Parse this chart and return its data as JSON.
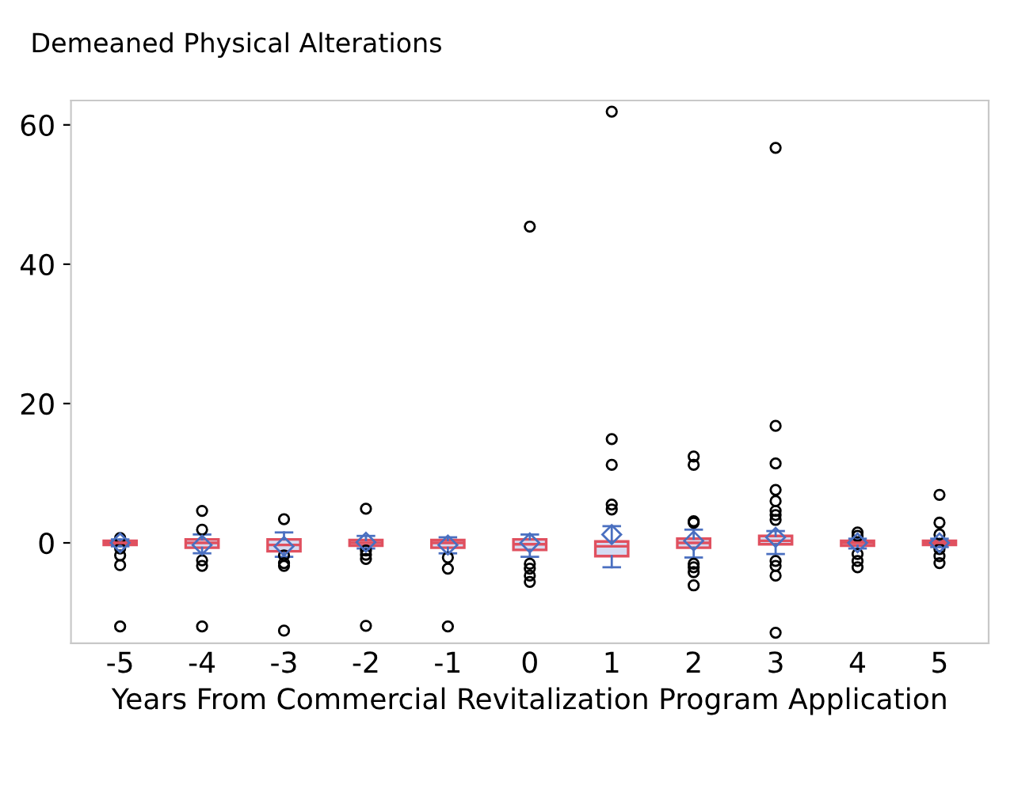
{
  "chart_data": {
    "type": "box",
    "title": "Demeaned Physical Alterations",
    "xlabel": "Years From Commercial Revitalization Program Application",
    "categories": [
      "-5",
      "-4",
      "-3",
      "-2",
      "-1",
      "0",
      "1",
      "2",
      "3",
      "4",
      "5"
    ],
    "ylim": [
      -14.4,
      63.5
    ],
    "yticks": [
      0,
      20,
      40,
      60
    ],
    "grid": false,
    "color": "#e0505f",
    "boxes": [
      {
        "low": -0.5,
        "q1": -0.3,
        "median": 0,
        "q3": 0.3,
        "high": 0.5,
        "mean": 0,
        "outliers": [
          0.7,
          -0.8,
          -1.8,
          -3.2,
          -12.0
        ]
      },
      {
        "low": -1.5,
        "q1": -0.7,
        "median": 0,
        "q3": 0.5,
        "high": 1.2,
        "mean": -0.3,
        "outliers": [
          4.6,
          1.9,
          -2.5,
          -3.3,
          -12.0
        ]
      },
      {
        "low": -2.0,
        "q1": -1.2,
        "median": -0.3,
        "q3": 0.5,
        "high": 1.5,
        "mean": -0.5,
        "outliers": [
          3.4,
          -1.8,
          -2.9,
          -3.3,
          -12.6
        ]
      },
      {
        "low": -0.8,
        "q1": -0.4,
        "median": 0,
        "q3": 0.4,
        "high": 1.0,
        "mean": 0.1,
        "outliers": [
          4.9,
          -1.1,
          -1.7,
          -2.3,
          -11.9
        ]
      },
      {
        "low": -1.5,
        "q1": -0.7,
        "median": 0,
        "q3": 0.4,
        "high": 0.8,
        "mean": -0.3,
        "outliers": [
          -2.1,
          -3.7,
          -12.0
        ]
      },
      {
        "low": -2.0,
        "q1": -1.0,
        "median": -0.2,
        "q3": 0.5,
        "high": 1.2,
        "mean": 0,
        "outliers": [
          45.4,
          -3.0,
          -3.7,
          -4.7,
          -5.6
        ]
      },
      {
        "low": -3.5,
        "q1": -1.9,
        "median": -0.5,
        "q3": 0.2,
        "high": 2.4,
        "mean": 1.2,
        "outliers": [
          61.9,
          14.9,
          11.2,
          5.5,
          4.8
        ]
      },
      {
        "low": -2.1,
        "q1": -0.7,
        "median": 0,
        "q3": 0.6,
        "high": 1.9,
        "mean": 0.3,
        "outliers": [
          12.4,
          11.2,
          3.1,
          2.9,
          -3.0,
          -3.5,
          -4.2,
          -6.1
        ]
      },
      {
        "low": -1.6,
        "q1": -0.2,
        "median": 0.3,
        "q3": 1.0,
        "high": 1.7,
        "mean": 0.8,
        "outliers": [
          56.7,
          16.8,
          11.4,
          7.6,
          6.0,
          4.6,
          4.0,
          3.3,
          -2.6,
          -3.3,
          -4.7,
          -12.9
        ]
      },
      {
        "low": -0.8,
        "q1": -0.4,
        "median": 0,
        "q3": 0.3,
        "high": 0.6,
        "mean": 0,
        "outliers": [
          1.5,
          1.0,
          -1.6,
          -2.6,
          -3.5
        ]
      },
      {
        "low": -0.6,
        "q1": -0.3,
        "median": 0,
        "q3": 0.3,
        "high": 0.6,
        "mean": 0,
        "outliers": [
          6.9,
          2.9,
          1.2,
          -0.9,
          -1.9,
          -2.9
        ]
      }
    ]
  }
}
